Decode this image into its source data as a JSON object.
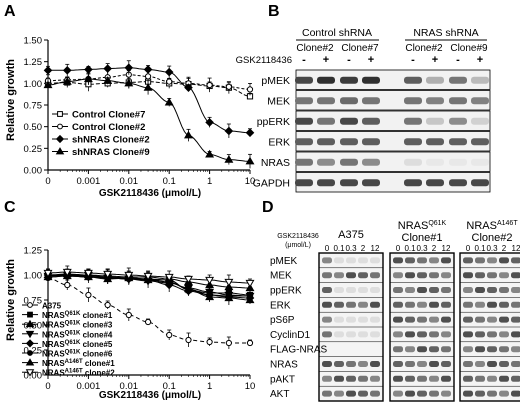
{
  "panels": {
    "A": "A",
    "B": "B",
    "C": "C",
    "D": "D"
  },
  "panel_a": {
    "ylabel": "Relative growth",
    "xlabel": "GSK2118436 (μmol/L)"
  },
  "panel_c": {
    "ylabel": "Relative growth",
    "xlabel": "GSK2118436 (μmol/L)"
  },
  "panel_b": {
    "group1_label": "Control shRNA",
    "group2_label": "NRAS shRNA",
    "clones": [
      "Clone#2",
      "Clone#7",
      "Clone#2",
      "Clone#9"
    ],
    "treatment_label": "GSK2118436",
    "treatment_states": [
      "-",
      "+",
      "-",
      "+",
      "-",
      "+",
      "-",
      "+"
    ],
    "rows": [
      "pMEK",
      "MEK",
      "ppERK",
      "ERK",
      "NRAS",
      "GAPDH"
    ]
  },
  "panel_d": {
    "conc_label": "GSK2118436",
    "conc_units": "(μmol/L)",
    "rows": [
      "pMEK",
      "MEK",
      "ppERK",
      "ERK",
      "pS6P",
      "CyclinD1",
      "FLAG-NRAS",
      "NRAS",
      "pAKT",
      "AKT"
    ],
    "groups": [
      {
        "title": "A375",
        "line2": "",
        "concs": [
          "0",
          "0.1",
          "0.3",
          "2",
          "12"
        ]
      },
      {
        "title": "NRAS",
        "sup": "Q61K",
        "line2": "Clone#1",
        "concs": [
          "0",
          "0.1",
          "0.3",
          "2",
          "12"
        ]
      },
      {
        "title": "NRAS",
        "sup": "A146T",
        "line2": "Clone#2",
        "concs": [
          "0",
          "0.1",
          "0.3",
          "2",
          "12"
        ]
      }
    ]
  },
  "colors": {
    "line": "#000000",
    "blot_bg": "#ffffff"
  },
  "chart_data": [
    {
      "panel": "A",
      "type": "scatter",
      "xscale": "log",
      "xlabel": "GSK2118436 (μmol/L)",
      "ylabel": "Relative growth",
      "xticks": [
        "0",
        "0.001",
        "0.01",
        "0.1",
        "1",
        "10"
      ],
      "yticks": [
        "0.00",
        "0.25",
        "0.50",
        "0.75",
        "1.00",
        "1.25",
        "1.50"
      ],
      "ylim": [
        0,
        1.5
      ],
      "legend_position": "bottom-left",
      "series": [
        {
          "name": "Control Clone#7",
          "marker": "square-open",
          "x": [
            0.0001,
            0.0003,
            0.001,
            0.003,
            0.01,
            0.03,
            0.1,
            0.3,
            1,
            3,
            10
          ],
          "y": [
            1.0,
            1.01,
            0.99,
            1.0,
            1.01,
            1.02,
            1.0,
            0.99,
            0.97,
            0.95,
            0.85
          ]
        },
        {
          "name": "Control Clone#2",
          "marker": "circle-open",
          "x": [
            0.0001,
            0.0003,
            0.001,
            0.003,
            0.01,
            0.03,
            0.1,
            0.3,
            1,
            3,
            10
          ],
          "y": [
            1.03,
            1.04,
            1.05,
            1.07,
            1.1,
            1.08,
            1.02,
            1.0,
            0.98,
            0.96,
            0.93
          ]
        },
        {
          "name": "shNRAS Clone#2",
          "marker": "diamond",
          "x": [
            0.0001,
            0.0003,
            0.001,
            0.003,
            0.01,
            0.03,
            0.1,
            0.3,
            1,
            3,
            10
          ],
          "y": [
            1.15,
            1.15,
            1.16,
            1.17,
            1.18,
            1.16,
            1.13,
            0.95,
            0.55,
            0.45,
            0.43
          ]
        },
        {
          "name": "shNRAS Clone#9",
          "marker": "triangle",
          "x": [
            0.0001,
            0.0003,
            0.001,
            0.003,
            0.01,
            0.03,
            0.1,
            0.3,
            1,
            3,
            10
          ],
          "y": [
            0.98,
            1.02,
            1.05,
            1.03,
            1.0,
            0.95,
            0.78,
            0.4,
            0.18,
            0.12,
            0.1
          ]
        }
      ]
    },
    {
      "panel": "C",
      "type": "scatter",
      "xscale": "log",
      "xlabel": "GSK2118436 (μmol/L)",
      "ylabel": "Relative growth",
      "xticks": [
        "0",
        "0.001",
        "0.01",
        "0.1",
        "1",
        "10"
      ],
      "yticks": [
        "0.00",
        "0.25",
        "0.50",
        "0.75",
        "1.00",
        "1.25"
      ],
      "ylim": [
        0,
        1.25
      ],
      "legend_position": "bottom-left",
      "series": [
        {
          "name": "A375",
          "marker": "circle-open",
          "x": [
            0.0001,
            0.0003,
            0.001,
            0.003,
            0.01,
            0.03,
            0.1,
            0.3,
            1,
            3,
            10
          ],
          "y": [
            0.97,
            0.9,
            0.8,
            0.7,
            0.6,
            0.53,
            0.4,
            0.35,
            0.33,
            0.32,
            0.32
          ]
        },
        {
          "name": "NRAS Q61K clone#1",
          "sup": "Q61K",
          "base": "NRAS",
          "tail": " clone#1",
          "marker": "square",
          "x": [
            0.0001,
            0.0003,
            0.001,
            0.003,
            0.01,
            0.03,
            0.1,
            0.3,
            1,
            3,
            10
          ],
          "y": [
            1.0,
            1.0,
            0.99,
            0.98,
            0.97,
            0.96,
            0.95,
            0.85,
            0.82,
            0.82,
            0.8
          ]
        },
        {
          "name": "NRAS Q61K clone#3",
          "sup": "Q61K",
          "base": "NRAS",
          "tail": " clone#3",
          "marker": "triangle",
          "x": [
            0.0001,
            0.0003,
            0.001,
            0.003,
            0.01,
            0.03,
            0.1,
            0.3,
            1,
            3,
            10
          ],
          "y": [
            0.98,
            0.99,
            0.98,
            0.96,
            0.97,
            0.95,
            0.93,
            0.86,
            0.78,
            0.77,
            0.75
          ]
        },
        {
          "name": "NRAS Q61K clone#4",
          "sup": "Q61K",
          "base": "NRAS",
          "tail": " clone#4",
          "marker": "triangle-down",
          "x": [
            0.0001,
            0.0003,
            0.001,
            0.003,
            0.01,
            0.03,
            0.1,
            0.3,
            1,
            3,
            10
          ],
          "y": [
            0.99,
            1.0,
            1.0,
            0.97,
            0.96,
            0.94,
            0.92,
            0.87,
            0.83,
            0.8,
            0.79
          ]
        },
        {
          "name": "NRAS Q61K clone#5",
          "sup": "Q61K",
          "base": "NRAS",
          "tail": " clone#5",
          "marker": "diamond",
          "x": [
            0.0001,
            0.0003,
            0.001,
            0.003,
            0.01,
            0.03,
            0.1,
            0.3,
            1,
            3,
            10
          ],
          "y": [
            1.0,
            0.99,
            0.98,
            0.97,
            0.96,
            0.95,
            0.9,
            0.84,
            0.8,
            0.78,
            0.77
          ]
        },
        {
          "name": "NRAS Q61K clone#6",
          "sup": "Q61K",
          "base": "NRAS",
          "tail": " clone#6",
          "marker": "circle",
          "x": [
            0.0001,
            0.0003,
            0.001,
            0.003,
            0.01,
            0.03,
            0.1,
            0.3,
            1,
            3,
            10
          ],
          "y": [
            0.98,
            0.99,
            0.99,
            0.98,
            0.97,
            0.96,
            0.93,
            0.86,
            0.8,
            0.79,
            0.79
          ]
        },
        {
          "name": "NRAS A146T clone#1",
          "sup": "A146T",
          "base": "NRAS",
          "tail": " clone#1",
          "marker": "triangle-up",
          "x": [
            0.0001,
            0.0003,
            0.001,
            0.003,
            0.01,
            0.03,
            0.1,
            0.3,
            1,
            3,
            10
          ],
          "y": [
            1.0,
            1.01,
            1.0,
            0.99,
            0.98,
            0.98,
            0.96,
            0.93,
            0.9,
            0.88,
            0.87
          ]
        },
        {
          "name": "NRAS A146T clone#2",
          "sup": "A146T",
          "base": "NRAS",
          "tail": " clone#2",
          "marker": "triangle-down-open",
          "x": [
            0.0001,
            0.0003,
            0.001,
            0.003,
            0.01,
            0.03,
            0.1,
            0.3,
            1,
            3,
            10
          ],
          "y": [
            1.02,
            1.03,
            1.02,
            1.01,
            1.0,
            0.99,
            0.98,
            0.96,
            0.95,
            0.93,
            0.92
          ]
        }
      ]
    }
  ]
}
